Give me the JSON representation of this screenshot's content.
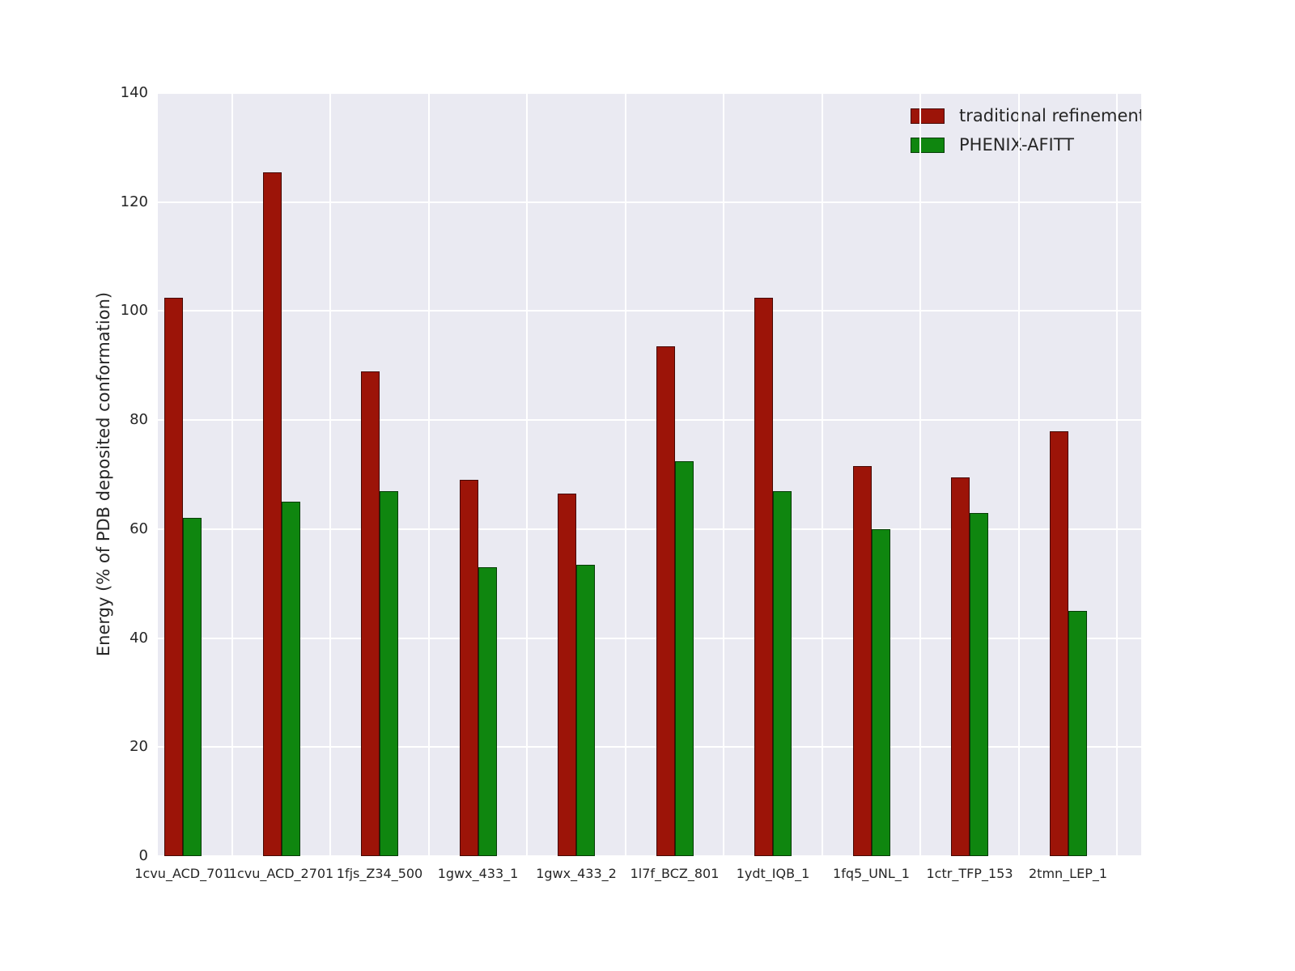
{
  "chart_data": {
    "type": "bar",
    "title": "",
    "xlabel": "",
    "ylabel": "Energy (% of PDB deposited conformation)",
    "ylim": [
      0,
      140
    ],
    "yticks": [
      0,
      20,
      40,
      60,
      80,
      100,
      120,
      140
    ],
    "grid": true,
    "legend_position": "upper right",
    "axes_background": "#eaeaf2",
    "grid_color": "#ffffff",
    "categories": [
      "1cvu_ACD_701",
      "1cvu_ACD_2701",
      "1fjs_Z34_500",
      "1gwx_433_1",
      "1gwx_433_2",
      "1l7f_BCZ_801",
      "1ydt_IQB_1",
      "1fq5_UNL_1",
      "1ctr_TFP_153",
      "2tmn_LEP_1"
    ],
    "series": [
      {
        "name": "traditional refinement",
        "color": "#9c1408",
        "values": [
          102.5,
          125.5,
          89,
          69,
          66.5,
          93.5,
          102.5,
          71.5,
          69.5,
          78
        ]
      },
      {
        "name": "PHENIX-AFITT",
        "color": "#0f860f",
        "values": [
          62,
          65,
          67,
          53,
          53.5,
          72.5,
          67,
          60,
          63,
          45
        ]
      }
    ]
  }
}
